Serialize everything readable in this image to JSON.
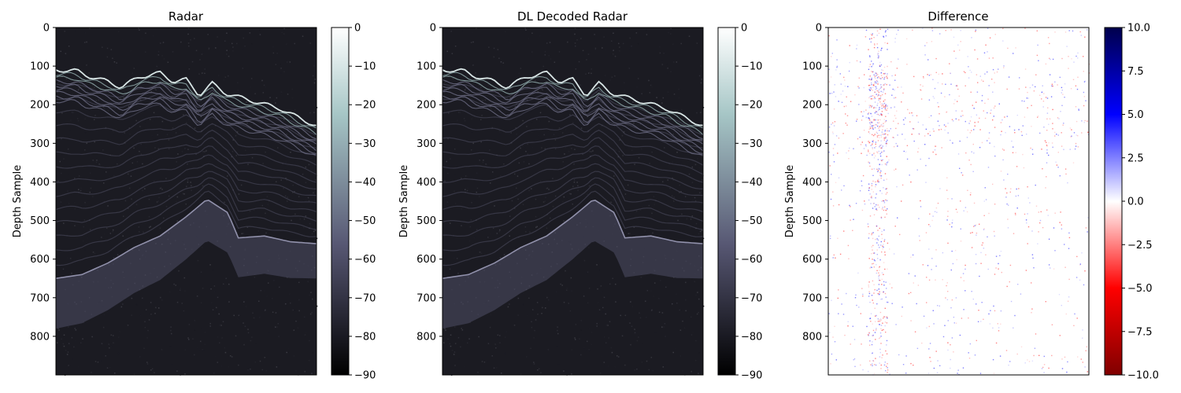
{
  "chart_data": [
    {
      "type": "heatmap",
      "title": "Radar",
      "xlabel": "",
      "ylabel": "Depth Sample",
      "yticks": [
        0,
        100,
        200,
        300,
        400,
        500,
        600,
        700,
        800
      ],
      "ylim": [
        900,
        0
      ],
      "colormap": "bone",
      "colorbar": {
        "ticks": [
          0,
          -10,
          -20,
          -30,
          -40,
          -50,
          -60,
          -70,
          -80,
          -90
        ],
        "range": [
          -90,
          0
        ]
      }
    },
    {
      "type": "heatmap",
      "title": "DL Decoded Radar",
      "xlabel": "",
      "ylabel": "Depth Sample",
      "yticks": [
        0,
        100,
        200,
        300,
        400,
        500,
        600,
        700,
        800
      ],
      "ylim": [
        900,
        0
      ],
      "colormap": "bone",
      "colorbar": {
        "ticks": [
          0,
          -10,
          -20,
          -30,
          -40,
          -50,
          -60,
          -70,
          -80,
          -90
        ],
        "range": [
          -90,
          0
        ]
      }
    },
    {
      "type": "heatmap",
      "title": "Difference",
      "xlabel": "",
      "ylabel": "Depth Sample",
      "yticks": [
        0,
        100,
        200,
        300,
        400,
        500,
        600,
        700,
        800
      ],
      "ylim": [
        900,
        0
      ],
      "colormap": "seismic_r",
      "colorbar": {
        "ticks": [
          "10.0",
          "7.5",
          "5.0",
          "2.5",
          "0.0",
          "−2.5",
          "−5.0",
          "−7.5",
          "−10.0"
        ],
        "range": [
          -10,
          10
        ]
      }
    }
  ],
  "colors": {
    "bone_dark": "#000000",
    "bone_mid": "#575773",
    "bone_light": "#a6c6c6",
    "bone_white": "#ffffff",
    "diff_dark_blue": "#00004c",
    "diff_blue": "#0000ff",
    "diff_white": "#ffffff",
    "diff_red": "#ff0000",
    "diff_dark_red": "#800000"
  }
}
